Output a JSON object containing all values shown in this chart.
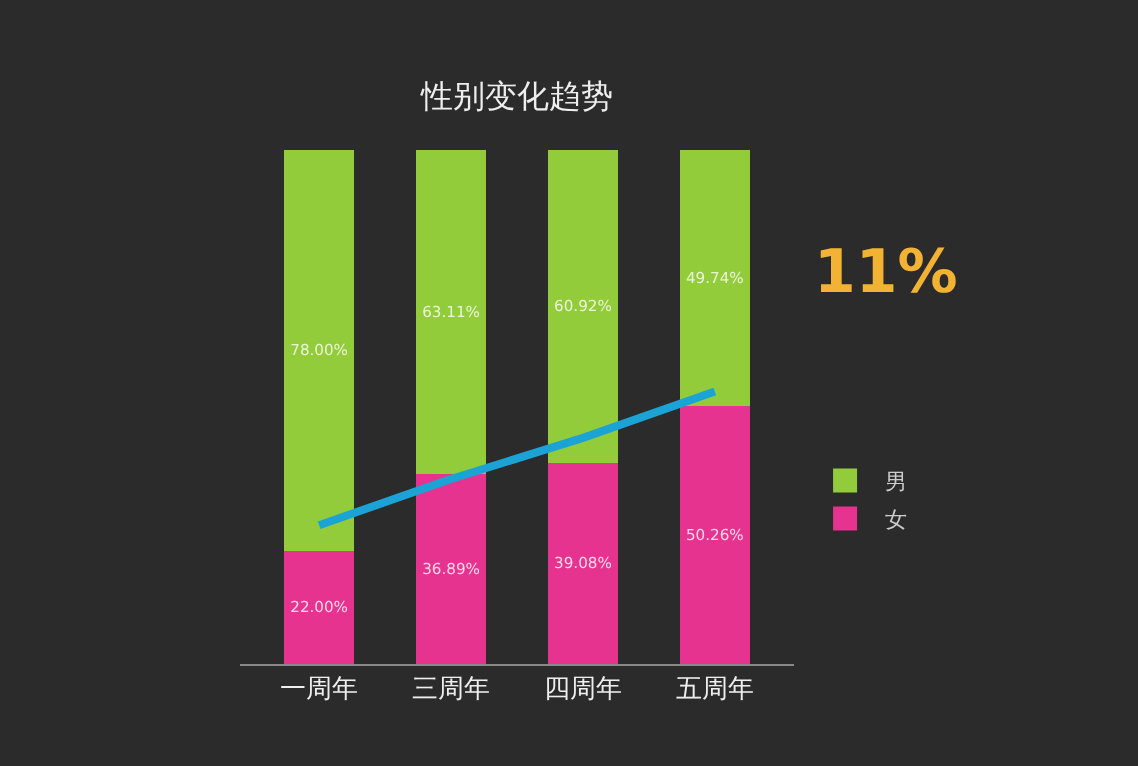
{
  "chart_data": {
    "type": "bar",
    "title": "性别变化趋势",
    "categories": [
      "一周年",
      "三周年",
      "四周年",
      "五周年"
    ],
    "stacked": true,
    "ylim": [
      0,
      100
    ],
    "tick_labels": "x",
    "legend": "right",
    "series": [
      {
        "name": "女",
        "color": "#e5338f",
        "values": [
          22.0,
          36.89,
          39.08,
          50.26
        ],
        "value_labels": [
          "22.00%",
          "36.89%",
          "39.08%",
          "50.26%"
        ]
      },
      {
        "name": "男",
        "color": "#93cc3a",
        "values": [
          78.0,
          63.11,
          60.92,
          49.74
        ],
        "value_labels": [
          "78.00%",
          "63.11%",
          "60.92%",
          "49.74%"
        ]
      },
      {
        "type": "line",
        "color": "#1ca3d6",
        "values": [
          27,
          36,
          44,
          53
        ]
      }
    ],
    "annotations": [
      "11%"
    ]
  }
}
